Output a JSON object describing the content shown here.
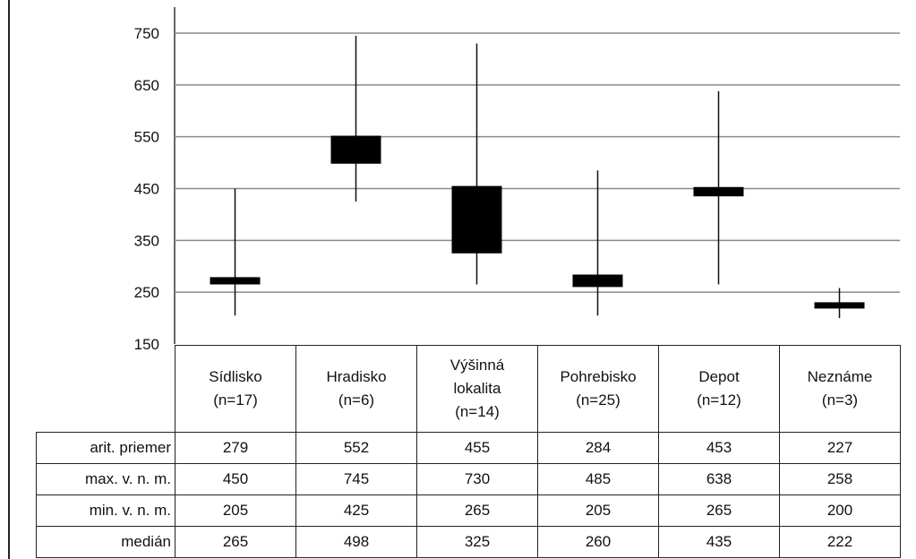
{
  "chart_data": {
    "type": "candlestick",
    "ylim": [
      150,
      750
    ],
    "yticks": [
      150,
      250,
      350,
      450,
      550,
      650,
      750
    ],
    "grid": true,
    "categories": [
      {
        "name": "Sídlisko",
        "n": "(n=17)"
      },
      {
        "name": "Hradisko",
        "n": "(n=6)"
      },
      {
        "name": "Výšinná lokalita",
        "n": "(n=14)"
      },
      {
        "name": "Pohrebisko",
        "n": "(n=25)"
      },
      {
        "name": "Depot",
        "n": "(n=12)"
      },
      {
        "name": "Neznáme",
        "n": "(n=3)"
      }
    ],
    "series": {
      "mean": [
        279,
        552,
        455,
        284,
        453,
        227
      ],
      "max": [
        450,
        745,
        730,
        485,
        638,
        258
      ],
      "min": [
        205,
        425,
        265,
        205,
        265,
        200
      ],
      "median": [
        265,
        498,
        325,
        260,
        435,
        222
      ]
    }
  },
  "table": {
    "rows": [
      {
        "label": "arit. priemer",
        "values": [
          "279",
          "552",
          "455",
          "284",
          "453",
          "227"
        ]
      },
      {
        "label": "max. v. n. m.",
        "values": [
          "450",
          "745",
          "730",
          "485",
          "638",
          "258"
        ]
      },
      {
        "label": "min. v. n. m.",
        "values": [
          "205",
          "425",
          "265",
          "205",
          "265",
          "200"
        ]
      },
      {
        "label": "medián",
        "values": [
          "265",
          "498",
          "325",
          "260",
          "435",
          "222"
        ]
      }
    ]
  }
}
